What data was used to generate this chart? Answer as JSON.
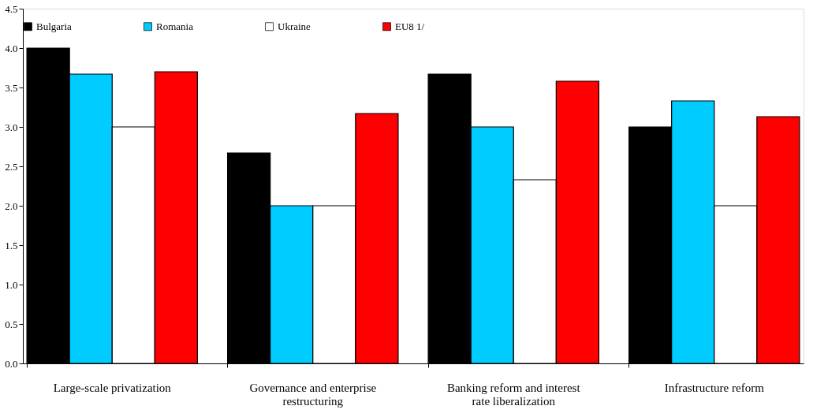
{
  "chart_data": {
    "type": "bar",
    "categories": [
      "Large-scale privatization",
      "Governance and enterprise restructuring",
      "Banking reform and interest rate liberalization",
      "Infrastructure reform"
    ],
    "series": [
      {
        "name": "Bulgaria",
        "color": "#000000",
        "values": [
          4.0,
          2.67,
          3.67,
          3.0
        ]
      },
      {
        "name": "Romania",
        "color": "#00ccff",
        "values": [
          3.67,
          2.0,
          3.0,
          3.33
        ]
      },
      {
        "name": "Ukraine",
        "color": "#ffffff",
        "values": [
          3.0,
          2.0,
          2.33,
          2.0
        ]
      },
      {
        "name": "EU8 1/",
        "color": "#ff0000",
        "values": [
          3.7,
          3.17,
          3.58,
          3.13
        ]
      }
    ],
    "ylim": [
      0,
      4.5
    ],
    "yticks": [
      {
        "value": 0,
        "label": "0.0"
      },
      {
        "value": 0.5,
        "label": "0.5"
      },
      {
        "value": 1,
        "label": "1.0"
      },
      {
        "value": 1.5,
        "label": "1.5"
      },
      {
        "value": 2,
        "label": "2.0"
      },
      {
        "value": 2.5,
        "label": "2.5"
      },
      {
        "value": 3,
        "label": "3.0"
      },
      {
        "value": 3.5,
        "label": "3.5"
      },
      {
        "value": 4,
        "label": "4.0"
      },
      {
        "value": 4.5,
        "label": "4.5"
      }
    ],
    "grid": false,
    "legend": "top"
  }
}
